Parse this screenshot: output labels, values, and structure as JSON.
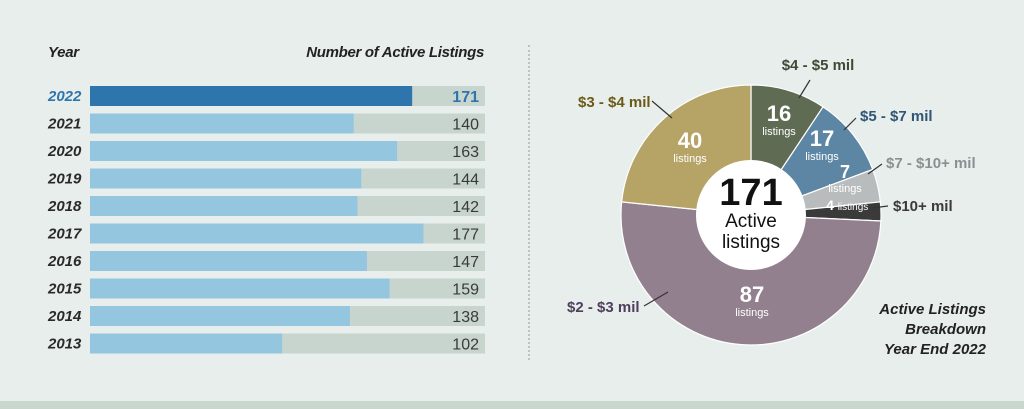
{
  "headers": {
    "year": "Year",
    "count": "Number of Active Listings"
  },
  "chart_data": [
    {
      "type": "bar",
      "orientation": "horizontal",
      "categories": [
        "2022",
        "2021",
        "2020",
        "2019",
        "2018",
        "2017",
        "2016",
        "2015",
        "2014",
        "2013"
      ],
      "values": [
        171,
        140,
        163,
        144,
        142,
        177,
        147,
        159,
        138,
        102
      ],
      "xlim": [
        0,
        200
      ],
      "colors": {
        "highlight": "#2e75ad",
        "bar": "#95c6e0",
        "track": "#c8d5cf",
        "highlight_label": "#2e75ad"
      }
    },
    {
      "type": "pie",
      "style": "donut",
      "center_value": "171",
      "center_label_1": "Active",
      "center_label_2": "listings",
      "unit_label": "listings",
      "slices": [
        {
          "label": "$4 - $5 mil",
          "value": 16,
          "color": "#5f6b52",
          "label_color": "#3e4a36"
        },
        {
          "label": "$5 - $7 mil",
          "value": 17,
          "color": "#5d86a4",
          "label_color": "#2f5677"
        },
        {
          "label": "$7 - $10+ mil",
          "value": 7,
          "color": "#b9bcbd",
          "label_color": "#8b8f91"
        },
        {
          "label": "$10+ mil",
          "value": 4,
          "color": "#3a3a3a",
          "label_color": "#3a3a3a"
        },
        {
          "label": "$2 - $3 mil",
          "value": 87,
          "color": "#93808f",
          "label_color": "#4f3f5d"
        },
        {
          "label": "$3 - $4 mil",
          "value": 40,
          "color": "#b5a466",
          "label_color": "#6b5a17"
        }
      ]
    }
  ],
  "note": {
    "line1": "Active Listings",
    "line2": "Breakdown",
    "line3": "Year End 2022"
  }
}
